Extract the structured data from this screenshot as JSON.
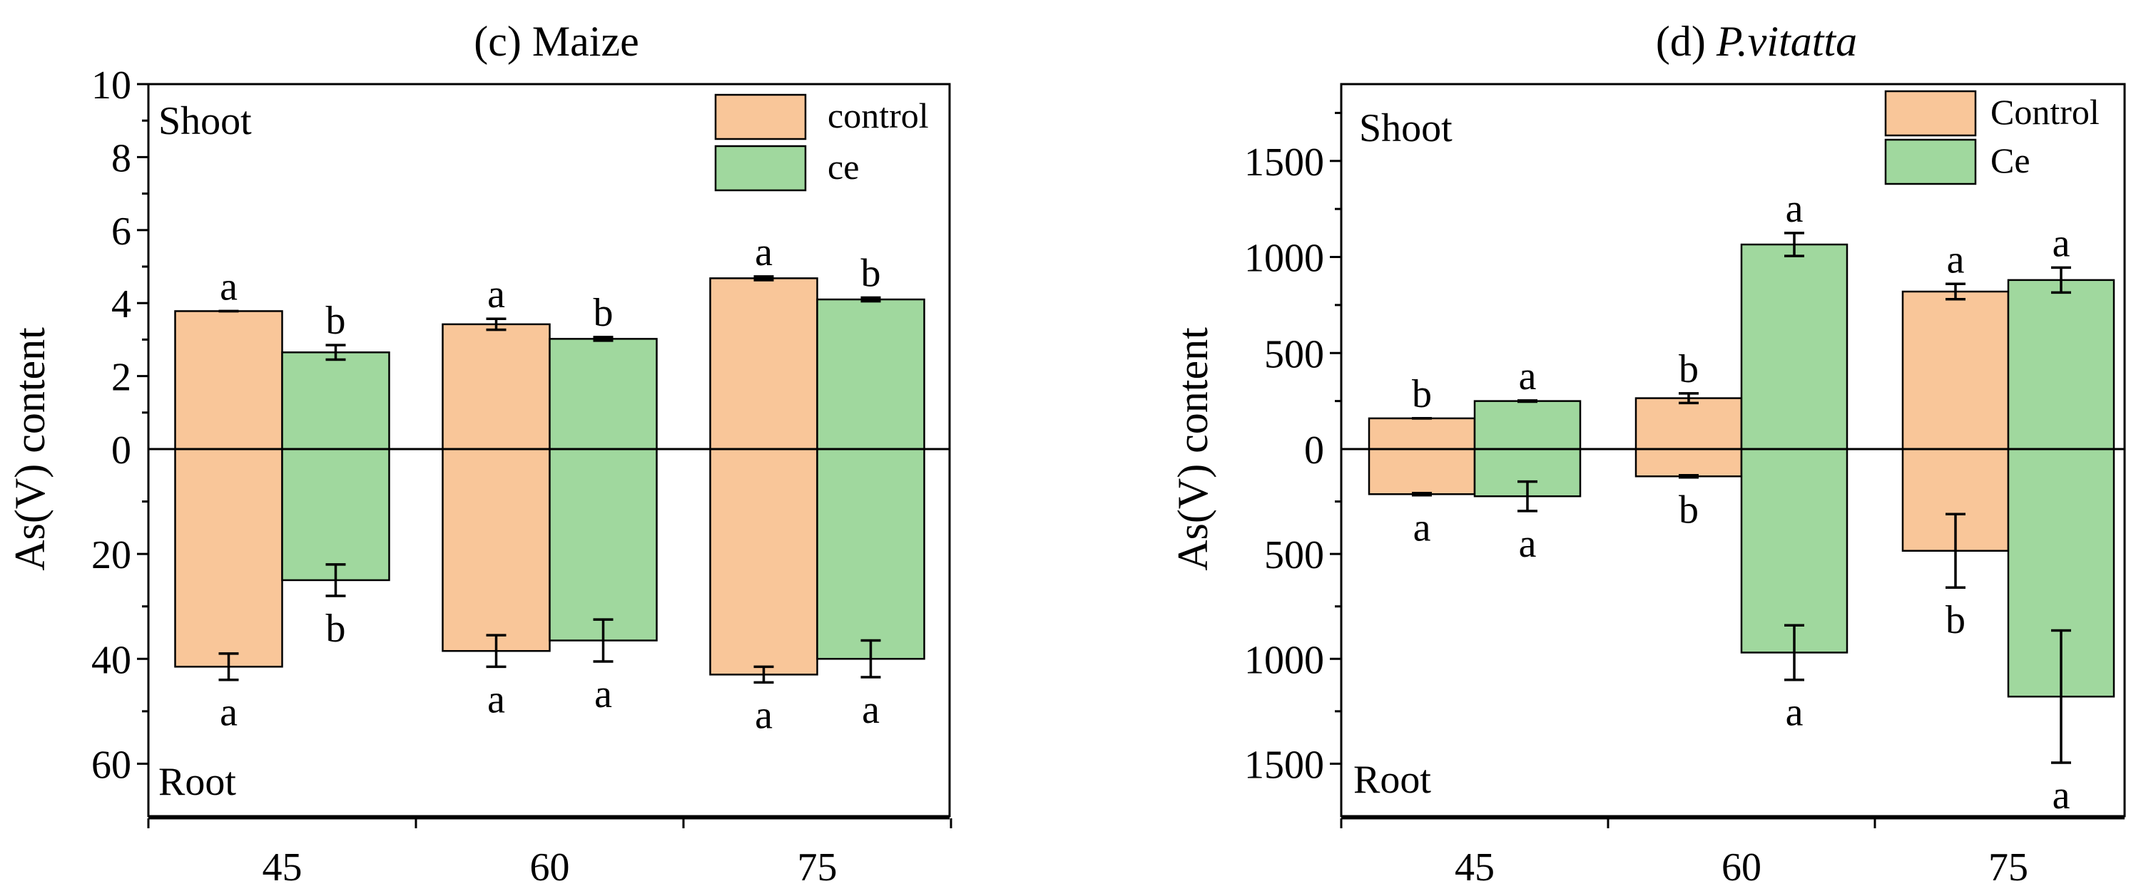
{
  "chart_data": [
    {
      "type": "bar",
      "panel": "c",
      "title_prefix": "(c) ",
      "title_species": "Maize",
      "title_italic": false,
      "ylabel": "As(V) content",
      "xlabel": "",
      "categories": [
        "45",
        "60",
        "75"
      ],
      "shoot_label": "Shoot",
      "root_label": "Root",
      "shoot_ylim": [
        0,
        10
      ],
      "root_ylim": [
        0,
        70
      ],
      "shoot_ticks": [
        "10",
        "8",
        "6",
        "4",
        "2",
        "0"
      ],
      "root_ticks": [
        "20",
        "40",
        "60"
      ],
      "legend_position": "top-right",
      "series": [
        {
          "name": "control",
          "color": "#f9c699",
          "shoot": [
            3.78,
            3.42,
            4.68
          ],
          "shoot_err": [
            0.0,
            0.15,
            0.05
          ],
          "shoot_letters": [
            "a",
            "a",
            "a"
          ],
          "root": [
            41.5,
            38.5,
            43.0
          ],
          "root_err": [
            2.5,
            3.0,
            1.5
          ],
          "root_letters": [
            "a",
            "a",
            "a"
          ]
        },
        {
          "name": "ce",
          "color": "#a0d89e",
          "shoot": [
            2.65,
            3.02,
            4.1
          ],
          "shoot_err": [
            0.2,
            0.05,
            0.05
          ],
          "shoot_letters": [
            "b",
            "b",
            "b"
          ],
          "root": [
            25.0,
            36.5,
            40.0
          ],
          "root_err": [
            3.0,
            4.0,
            3.5
          ],
          "root_letters": [
            "b",
            "a",
            "a"
          ]
        }
      ]
    },
    {
      "type": "bar",
      "panel": "d",
      "title_prefix": "(d) ",
      "title_species": "P.vitatta",
      "title_italic": true,
      "ylabel": "As(V) content",
      "xlabel": "",
      "categories": [
        "45",
        "60",
        "75"
      ],
      "shoot_label": "Shoot",
      "root_label": "Root",
      "shoot_ylim": [
        0,
        1900
      ],
      "root_ylim": [
        0,
        1750
      ],
      "shoot_ticks": [
        "1500",
        "1000",
        "500",
        "0"
      ],
      "root_ticks": [
        "500",
        "1000",
        "1500"
      ],
      "legend_position": "top-right",
      "series": [
        {
          "name": "Control",
          "color": "#f9c699",
          "shoot": [
            160,
            265,
            820
          ],
          "shoot_err": [
            0,
            25,
            40
          ],
          "shoot_letters": [
            "b",
            "b",
            "a"
          ],
          "root": [
            215,
            130,
            485
          ],
          "root_err": [
            5,
            5,
            175
          ],
          "root_letters": [
            "a",
            "b",
            "b"
          ]
        },
        {
          "name": "Ce",
          "color": "#a0d89e",
          "shoot": [
            250,
            1065,
            880
          ],
          "shoot_err": [
            3,
            60,
            65
          ],
          "shoot_letters": [
            "a",
            "a",
            "a"
          ],
          "root": [
            225,
            970,
            1180
          ],
          "root_err": [
            70,
            130,
            315
          ],
          "root_letters": [
            "a",
            "a",
            "a"
          ]
        }
      ]
    }
  ]
}
